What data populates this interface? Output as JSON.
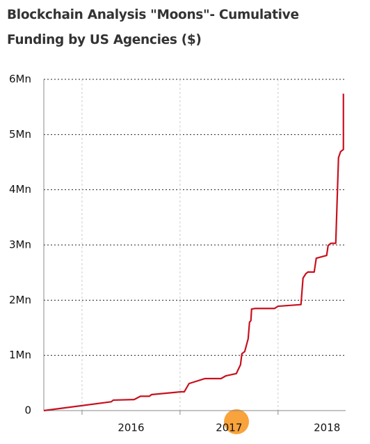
{
  "chart_data": {
    "type": "line",
    "title": "Blockchain Analysis \"Moons\"- Cumulative Funding by US Agencies ($)",
    "x": [
      2015.61,
      2016.298,
      2016.319,
      2016.532,
      2016.596,
      2016.688,
      2016.709,
      2017.007,
      2017.043,
      2017.092,
      2017.255,
      2017.418,
      2017.468,
      2017.574,
      2017.617,
      2017.631,
      2017.66,
      2017.695,
      2017.709,
      2017.723,
      2017.73,
      2017.766,
      2017.965,
      2018.0,
      2018.234,
      2018.255,
      2018.284,
      2018.305,
      2018.369,
      2018.39,
      2018.496,
      2018.511,
      2018.539,
      2018.589,
      2018.617,
      2018.638,
      2018.667,
      2018.667
    ],
    "series": [
      {
        "name": "Cumulative funding",
        "color": "#c8101e",
        "values": [
          0,
          160000,
          190000,
          200000,
          260000,
          260000,
          290000,
          340000,
          340000,
          490000,
          580000,
          580000,
          630000,
          670000,
          830000,
          1030000,
          1070000,
          1300000,
          1600000,
          1630000,
          1840000,
          1850000,
          1850000,
          1890000,
          1920000,
          2400000,
          2480000,
          2510000,
          2510000,
          2760000,
          2810000,
          2990000,
          3030000,
          3030000,
          4580000,
          4690000,
          4730000,
          5740000
        ]
      }
    ],
    "xlim": [
      2015.61,
      2018.69
    ],
    "xticks": [
      2016,
      2017,
      2018
    ],
    "ylim": [
      0,
      6000000
    ],
    "yticks": [
      0,
      {
        "value": 1000000,
        "label": "1Mn"
      },
      {
        "value": 2000000,
        "label": "2Mn"
      },
      {
        "value": 3000000,
        "label": "3Mn"
      },
      {
        "value": 4000000,
        "label": "4Mn"
      },
      {
        "value": 5000000,
        "label": "5Mn"
      },
      {
        "value": 6000000,
        "label": "6Mn"
      }
    ],
    "grid": true
  }
}
